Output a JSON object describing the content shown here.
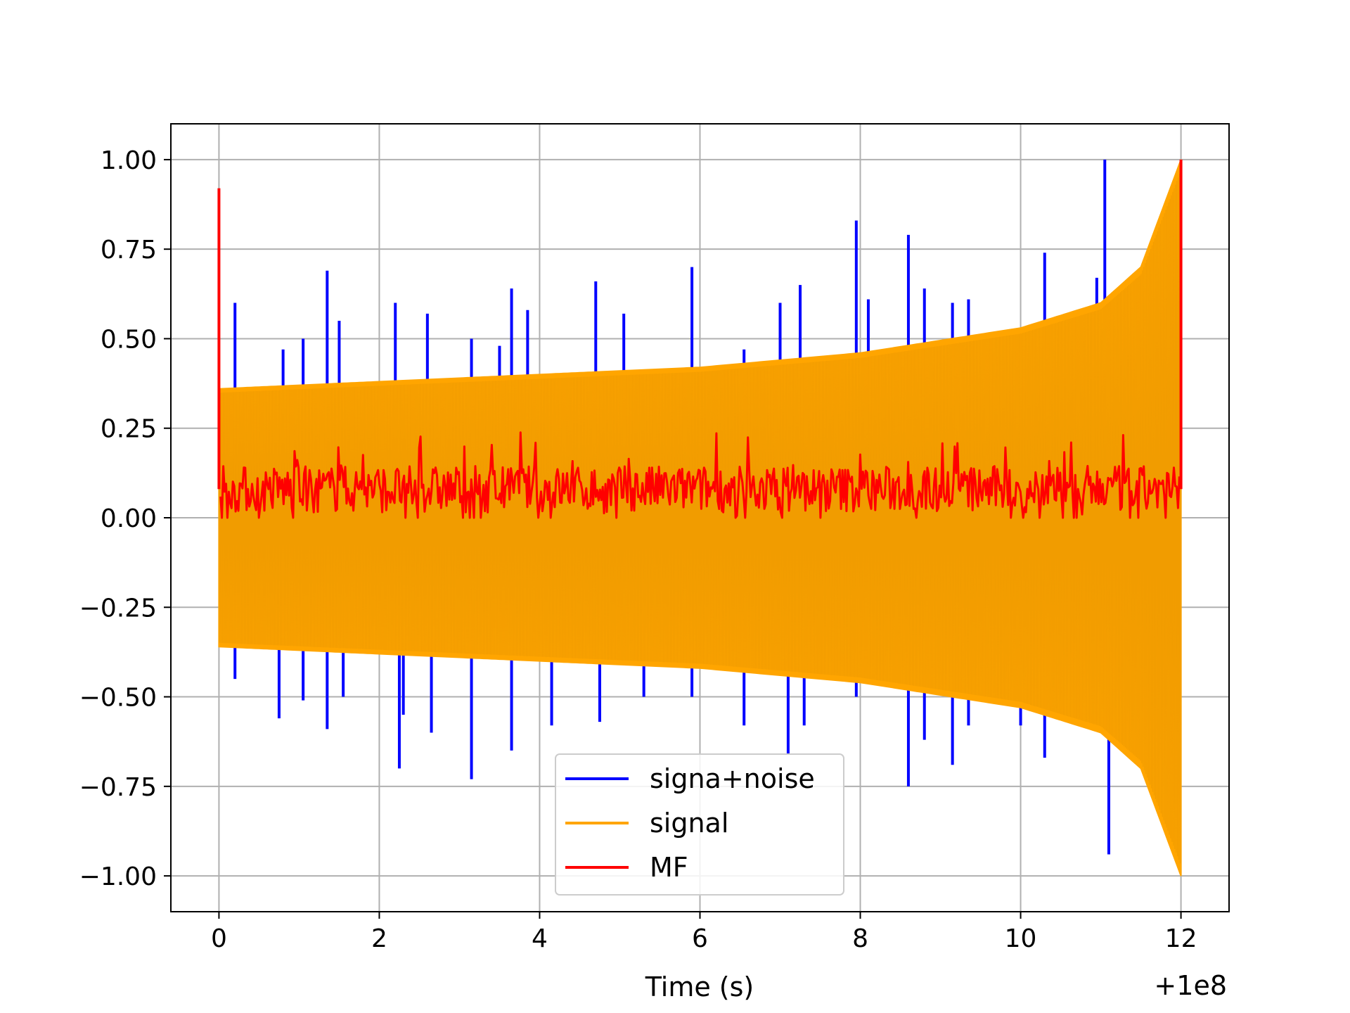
{
  "chart_data": {
    "type": "line",
    "xlabel": "Time (s)",
    "ylabel": "",
    "x_offset_label": "+1e8",
    "xlim": [
      -0.6,
      12.6
    ],
    "ylim": [
      -1.1,
      1.1
    ],
    "x_ticks": [
      0,
      2,
      4,
      6,
      8,
      10,
      12
    ],
    "x_tick_labels": [
      "0",
      "2",
      "4",
      "6",
      "8",
      "10",
      "12"
    ],
    "y_ticks": [
      1.0,
      0.75,
      0.5,
      0.25,
      0.0,
      -0.25,
      -0.5,
      -0.75,
      -1.0
    ],
    "y_tick_labels": [
      "1.00",
      "0.75",
      "0.50",
      "0.25",
      "0.00",
      "−0.25",
      "−0.50",
      "−0.75",
      "−1.00"
    ],
    "grid": true,
    "legend_position": "lower-center",
    "series": [
      {
        "name": "signa+noise",
        "color": "#0000ff",
        "x_start": 0,
        "x_end": 12,
        "envelope": {
          "x": [
            0,
            2,
            4,
            6,
            8,
            10,
            11,
            11.5,
            12
          ],
          "y": [
            0.36,
            0.38,
            0.4,
            0.42,
            0.46,
            0.53,
            0.6,
            0.7,
            1.0
          ]
        },
        "spikes": [
          {
            "x": 0.2,
            "y": 0.6
          },
          {
            "x": 0.2,
            "y": -0.45
          },
          {
            "x": 0.75,
            "y": -0.56
          },
          {
            "x": 0.8,
            "y": 0.47
          },
          {
            "x": 1.05,
            "y": 0.5
          },
          {
            "x": 1.05,
            "y": -0.51
          },
          {
            "x": 1.35,
            "y": 0.69
          },
          {
            "x": 1.35,
            "y": -0.59
          },
          {
            "x": 1.5,
            "y": 0.55
          },
          {
            "x": 1.55,
            "y": -0.5
          },
          {
            "x": 2.2,
            "y": 0.6
          },
          {
            "x": 2.25,
            "y": -0.7
          },
          {
            "x": 2.3,
            "y": -0.55
          },
          {
            "x": 2.6,
            "y": 0.57
          },
          {
            "x": 2.65,
            "y": -0.6
          },
          {
            "x": 3.15,
            "y": 0.5
          },
          {
            "x": 3.15,
            "y": -0.73
          },
          {
            "x": 3.5,
            "y": 0.48
          },
          {
            "x": 3.65,
            "y": 0.64
          },
          {
            "x": 3.65,
            "y": -0.65
          },
          {
            "x": 3.85,
            "y": 0.58
          },
          {
            "x": 4.15,
            "y": -0.58
          },
          {
            "x": 4.7,
            "y": 0.66
          },
          {
            "x": 4.75,
            "y": -0.57
          },
          {
            "x": 5.05,
            "y": 0.57
          },
          {
            "x": 5.3,
            "y": -0.5
          },
          {
            "x": 5.9,
            "y": 0.7
          },
          {
            "x": 5.9,
            "y": -0.5
          },
          {
            "x": 6.55,
            "y": 0.47
          },
          {
            "x": 6.55,
            "y": -0.58
          },
          {
            "x": 7.0,
            "y": 0.6
          },
          {
            "x": 7.1,
            "y": -0.66
          },
          {
            "x": 7.25,
            "y": 0.65
          },
          {
            "x": 7.3,
            "y": -0.58
          },
          {
            "x": 7.95,
            "y": 0.83
          },
          {
            "x": 7.95,
            "y": -0.5
          },
          {
            "x": 8.1,
            "y": 0.61
          },
          {
            "x": 8.6,
            "y": 0.79
          },
          {
            "x": 8.6,
            "y": -0.75
          },
          {
            "x": 8.8,
            "y": 0.64
          },
          {
            "x": 8.8,
            "y": -0.62
          },
          {
            "x": 9.15,
            "y": 0.6
          },
          {
            "x": 9.15,
            "y": -0.69
          },
          {
            "x": 9.35,
            "y": 0.61
          },
          {
            "x": 9.35,
            "y": -0.58
          },
          {
            "x": 10.0,
            "y": -0.58
          },
          {
            "x": 10.3,
            "y": 0.74
          },
          {
            "x": 10.3,
            "y": -0.67
          },
          {
            "x": 10.95,
            "y": 0.67
          },
          {
            "x": 11.05,
            "y": 1.0
          },
          {
            "x": 11.1,
            "y": -0.94
          },
          {
            "x": 11.1,
            "y": -0.84
          }
        ]
      },
      {
        "name": "signal",
        "color": "#ffa500",
        "x_start": 0,
        "x_end": 12,
        "envelope": {
          "x": [
            0,
            2,
            4,
            6,
            8,
            10,
            11,
            11.5,
            12
          ],
          "y": [
            0.36,
            0.38,
            0.4,
            0.42,
            0.46,
            0.53,
            0.6,
            0.7,
            1.0
          ]
        }
      },
      {
        "name": "MF",
        "color": "#ff0000",
        "x_start": 0,
        "x_end": 12,
        "baseline": 0.08,
        "band": [
          0.0,
          0.24
        ],
        "peaks": [
          {
            "x": 0.0,
            "y": 0.92
          },
          {
            "x": 12.0,
            "y": 1.0
          }
        ]
      }
    ]
  }
}
